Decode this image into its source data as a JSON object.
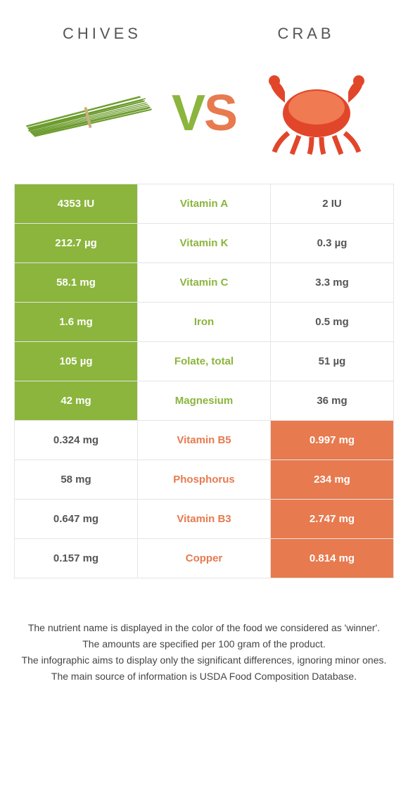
{
  "header": {
    "left_title": "CHIVES",
    "right_title": "CRAB"
  },
  "vs": {
    "v": "V",
    "s": "S"
  },
  "colors": {
    "left": "#8bb53d",
    "right": "#e77a4f",
    "border": "#e5e5e5",
    "text": "#555"
  },
  "table": {
    "rows": [
      {
        "nutrient": "Vitamin A",
        "left": "4353 IU",
        "right": "2 IU",
        "winner": "left"
      },
      {
        "nutrient": "Vitamin K",
        "left": "212.7 µg",
        "right": "0.3 µg",
        "winner": "left"
      },
      {
        "nutrient": "Vitamin C",
        "left": "58.1 mg",
        "right": "3.3 mg",
        "winner": "left"
      },
      {
        "nutrient": "Iron",
        "left": "1.6 mg",
        "right": "0.5 mg",
        "winner": "left"
      },
      {
        "nutrient": "Folate, total",
        "left": "105 µg",
        "right": "51 µg",
        "winner": "left"
      },
      {
        "nutrient": "Magnesium",
        "left": "42 mg",
        "right": "36 mg",
        "winner": "left"
      },
      {
        "nutrient": "Vitamin B5",
        "left": "0.324 mg",
        "right": "0.997 mg",
        "winner": "right"
      },
      {
        "nutrient": "Phosphorus",
        "left": "58 mg",
        "right": "234 mg",
        "winner": "right"
      },
      {
        "nutrient": "Vitamin B3",
        "left": "0.647 mg",
        "right": "2.747 mg",
        "winner": "right"
      },
      {
        "nutrient": "Copper",
        "left": "0.157 mg",
        "right": "0.814 mg",
        "winner": "right"
      }
    ]
  },
  "notes": {
    "l1": "The nutrient name is displayed in the color of the food we considered as 'winner'.",
    "l2": "The amounts are specified per 100 gram of the product.",
    "l3": "The infographic aims to display only the significant differences, ignoring minor ones.",
    "l4": "The main source of information is USDA Food Composition Database."
  }
}
